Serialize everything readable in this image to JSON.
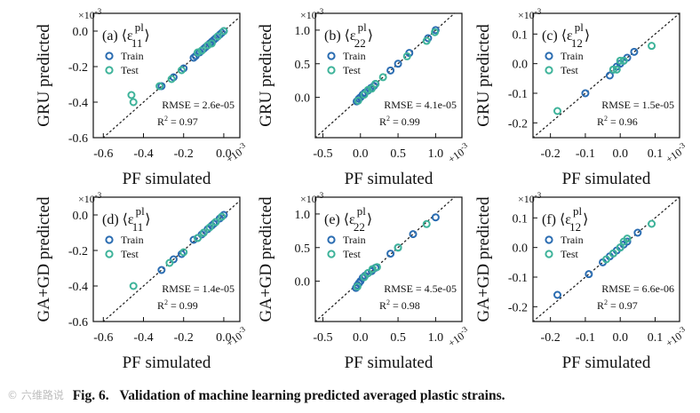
{
  "caption": {
    "watermark": "© 六维路说",
    "number": "Fig. 6.",
    "title": "Validation of machine learning predicted averaged plastic strains."
  },
  "colors": {
    "train_edge": "#2a6cb1",
    "test_edge": "#3eb39a",
    "diagonal": "#222222"
  },
  "chart_data": [
    {
      "type": "scatter",
      "panel": "(a)",
      "sub": "11",
      "xlabel": "PF simulated",
      "ylabel": "GRU predicted",
      "xlim": [
        -0.65,
        0.08
      ],
      "ylim": [
        -0.6,
        0.1
      ],
      "xticks": [
        "-0.6",
        "-0.4",
        "-0.2",
        "0.0"
      ],
      "xtick_values": [
        -0.6,
        -0.4,
        -0.2,
        0.0
      ],
      "yticks": [
        "-0.6",
        "-0.4",
        "-0.2",
        "0.0"
      ],
      "ytick_values": [
        -0.6,
        -0.4,
        -0.2,
        0.0
      ],
      "x_exponent": "×10",
      "y_exponent": "×10",
      "exponent_power": "-3",
      "rmse": "RMSE = 2.6e-05",
      "r2_prefix": "R",
      "r2_power": "2",
      "r2_value": " = 0.97",
      "legend": [
        "Train",
        "Test"
      ],
      "series": [
        {
          "name": "Train",
          "x": [
            -0.31,
            -0.25,
            -0.2,
            -0.15,
            -0.14,
            -0.12,
            -0.11,
            -0.1,
            -0.09,
            -0.08,
            -0.07,
            -0.06,
            -0.05,
            -0.04,
            -0.03,
            -0.02,
            -0.01,
            0.0
          ],
          "y": [
            -0.31,
            -0.26,
            -0.21,
            -0.15,
            -0.14,
            -0.12,
            -0.11,
            -0.1,
            -0.09,
            -0.08,
            -0.07,
            -0.06,
            -0.05,
            -0.04,
            -0.03,
            -0.02,
            -0.01,
            0.0
          ]
        },
        {
          "name": "Test",
          "x": [
            -0.46,
            -0.45,
            -0.32,
            -0.26,
            -0.21,
            -0.13,
            -0.11,
            -0.08,
            -0.06,
            -0.03,
            0.0
          ],
          "y": [
            -0.36,
            -0.4,
            -0.31,
            -0.27,
            -0.22,
            -0.12,
            -0.11,
            -0.08,
            -0.07,
            -0.03,
            0.0
          ]
        }
      ]
    },
    {
      "type": "scatter",
      "panel": "(b)",
      "sub": "22",
      "xlabel": "PF simulated",
      "ylabel": "GRU predicted",
      "xlim": [
        -0.6,
        1.35
      ],
      "ylim": [
        -0.6,
        1.25
      ],
      "xticks": [
        "-0.5",
        "0.0",
        "0.5",
        "1.0"
      ],
      "xtick_values": [
        -0.5,
        0.0,
        0.5,
        1.0
      ],
      "yticks": [
        "0.0",
        "0.5",
        "1.0"
      ],
      "ytick_values": [
        0.0,
        0.5,
        1.0
      ],
      "x_exponent": "×10",
      "y_exponent": "×10",
      "exponent_power": "-3",
      "rmse": "RMSE = 4.1e-05",
      "r2_prefix": "R",
      "r2_power": "2",
      "r2_value": " = 0.99",
      "legend": [
        "Train",
        "Test"
      ],
      "series": [
        {
          "name": "Train",
          "x": [
            -0.05,
            -0.02,
            0.0,
            0.03,
            0.06,
            0.1,
            0.14,
            0.18,
            0.2,
            0.4,
            0.5,
            0.65,
            0.9,
            1.0
          ],
          "y": [
            -0.06,
            -0.02,
            0.0,
            0.04,
            0.07,
            0.1,
            0.14,
            0.17,
            0.2,
            0.4,
            0.5,
            0.66,
            0.88,
            1.0
          ]
        },
        {
          "name": "Test",
          "x": [
            -0.03,
            0.05,
            0.1,
            0.15,
            0.2,
            0.3,
            0.62,
            0.88,
            0.99
          ],
          "y": [
            -0.05,
            0.04,
            0.11,
            0.13,
            0.2,
            0.3,
            0.61,
            0.84,
            0.97
          ]
        }
      ]
    },
    {
      "type": "scatter",
      "panel": "(c)",
      "sub": "12",
      "xlabel": "PF simulated",
      "ylabel": "GRU predicted",
      "xlim": [
        -0.25,
        0.17
      ],
      "ylim": [
        -0.25,
        0.17
      ],
      "xticks": [
        "-0.2",
        "-0.1",
        "0.0",
        "0.1"
      ],
      "xtick_values": [
        -0.2,
        -0.1,
        0.0,
        0.1
      ],
      "yticks": [
        "-0.2",
        "-0.1",
        "0.0",
        "0.1"
      ],
      "ytick_values": [
        -0.2,
        -0.1,
        0.0,
        0.1
      ],
      "x_exponent": "×10",
      "y_exponent": "×10",
      "exponent_power": "-3",
      "rmse": "RMSE = 1.5e-05",
      "r2_prefix": "R",
      "r2_power": "2",
      "r2_value": " = 0.96",
      "legend": [
        "Train",
        "Test"
      ],
      "series": [
        {
          "name": "Train",
          "x": [
            -0.1,
            -0.03,
            -0.02,
            -0.01,
            0.0,
            0.01,
            0.02,
            0.04
          ],
          "y": [
            -0.1,
            -0.04,
            -0.02,
            -0.01,
            0.0,
            0.01,
            0.02,
            0.04
          ]
        },
        {
          "name": "Test",
          "x": [
            -0.18,
            -0.02,
            -0.01,
            0.0,
            0.01,
            0.09
          ],
          "y": [
            -0.16,
            -0.02,
            -0.02,
            0.01,
            0.01,
            0.06
          ]
        }
      ]
    },
    {
      "type": "scatter",
      "panel": "(d)",
      "sub": "11",
      "xlabel": "PF simulated",
      "ylabel": "GA+GD predicted",
      "xlim": [
        -0.65,
        0.08
      ],
      "ylim": [
        -0.6,
        0.1
      ],
      "xticks": [
        "-0.6",
        "-0.4",
        "-0.2",
        "0.0"
      ],
      "xtick_values": [
        -0.6,
        -0.4,
        -0.2,
        0.0
      ],
      "yticks": [
        "-0.6",
        "-0.4",
        "-0.2",
        "0.0"
      ],
      "ytick_values": [
        -0.6,
        -0.4,
        -0.2,
        0.0
      ],
      "x_exponent": "×10",
      "y_exponent": "×10",
      "exponent_power": "-3",
      "rmse": "RMSE = 1.4e-05",
      "r2_prefix": "R",
      "r2_power": "2",
      "r2_value": " = 0.99",
      "legend": [
        "Train",
        "Test"
      ],
      "series": [
        {
          "name": "Train",
          "x": [
            -0.31,
            -0.25,
            -0.21,
            -0.15,
            -0.13,
            -0.11,
            -0.1,
            -0.08,
            -0.06,
            -0.05,
            -0.04,
            -0.02,
            -0.01,
            0.0
          ],
          "y": [
            -0.31,
            -0.25,
            -0.22,
            -0.14,
            -0.13,
            -0.11,
            -0.1,
            -0.08,
            -0.06,
            -0.05,
            -0.04,
            -0.02,
            -0.01,
            0.0
          ]
        },
        {
          "name": "Test",
          "x": [
            -0.45,
            -0.27,
            -0.2,
            -0.13,
            -0.1,
            -0.07,
            -0.04,
            -0.01
          ],
          "y": [
            -0.4,
            -0.27,
            -0.21,
            -0.13,
            -0.1,
            -0.07,
            -0.04,
            -0.01
          ]
        }
      ]
    },
    {
      "type": "scatter",
      "panel": "(e)",
      "sub": "22",
      "xlabel": "PF simulated",
      "ylabel": "GA+GD predicted",
      "xlim": [
        -0.6,
        1.35
      ],
      "ylim": [
        -0.6,
        1.25
      ],
      "xticks": [
        "-0.5",
        "0.0",
        "0.5",
        "1.0"
      ],
      "xtick_values": [
        -0.5,
        0.0,
        0.5,
        1.0
      ],
      "yticks": [
        "0.0",
        "0.5",
        "1.0"
      ],
      "ytick_values": [
        0.0,
        0.5,
        1.0
      ],
      "x_exponent": "×10",
      "y_exponent": "×10",
      "exponent_power": "-3",
      "rmse": "RMSE = 4.5e-05",
      "r2_prefix": "R",
      "r2_power": "2",
      "r2_value": " = 0.98",
      "legend": [
        "Train",
        "Test"
      ],
      "series": [
        {
          "name": "Train",
          "x": [
            -0.06,
            -0.04,
            -0.02,
            0.0,
            0.03,
            0.06,
            0.1,
            0.15,
            0.2,
            0.4,
            0.5,
            0.7,
            1.0
          ],
          "y": [
            -0.1,
            -0.06,
            -0.03,
            0.0,
            0.05,
            0.08,
            0.12,
            0.15,
            0.2,
            0.41,
            0.5,
            0.7,
            0.95
          ]
        },
        {
          "name": "Test",
          "x": [
            -0.04,
            0.05,
            0.1,
            0.16,
            0.22,
            0.5,
            0.88
          ],
          "y": [
            -0.08,
            0.06,
            0.12,
            0.18,
            0.21,
            0.5,
            0.85
          ]
        }
      ]
    },
    {
      "type": "scatter",
      "panel": "(f)",
      "sub": "12",
      "xlabel": "PF simulated",
      "ylabel": "GA+GD predicted",
      "xlim": [
        -0.25,
        0.17
      ],
      "ylim": [
        -0.25,
        0.17
      ],
      "xticks": [
        "-0.2",
        "-0.1",
        "0.0",
        "0.1"
      ],
      "xtick_values": [
        -0.2,
        -0.1,
        0.0,
        0.1
      ],
      "yticks": [
        "-0.2",
        "-0.1",
        "0.0",
        "0.1"
      ],
      "ytick_values": [
        -0.2,
        -0.1,
        0.0,
        0.1
      ],
      "x_exponent": "×10",
      "y_exponent": "×10",
      "exponent_power": "-3",
      "rmse": "RMSE = 6.6e-06",
      "r2_prefix": "R",
      "r2_power": "2",
      "r2_value": " = 0.97",
      "legend": [
        "Train",
        "Test"
      ],
      "series": [
        {
          "name": "Train",
          "x": [
            -0.18,
            -0.09,
            -0.05,
            -0.03,
            -0.02,
            -0.01,
            0.0,
            0.01,
            0.02,
            0.05
          ],
          "y": [
            -0.16,
            -0.09,
            -0.05,
            -0.03,
            -0.02,
            -0.01,
            0.0,
            0.01,
            0.02,
            0.05
          ]
        },
        {
          "name": "Test",
          "x": [
            -0.04,
            -0.02,
            0.0,
            0.01,
            0.02,
            0.09
          ],
          "y": [
            -0.04,
            -0.02,
            0.0,
            0.02,
            0.03,
            0.08
          ]
        }
      ]
    }
  ]
}
